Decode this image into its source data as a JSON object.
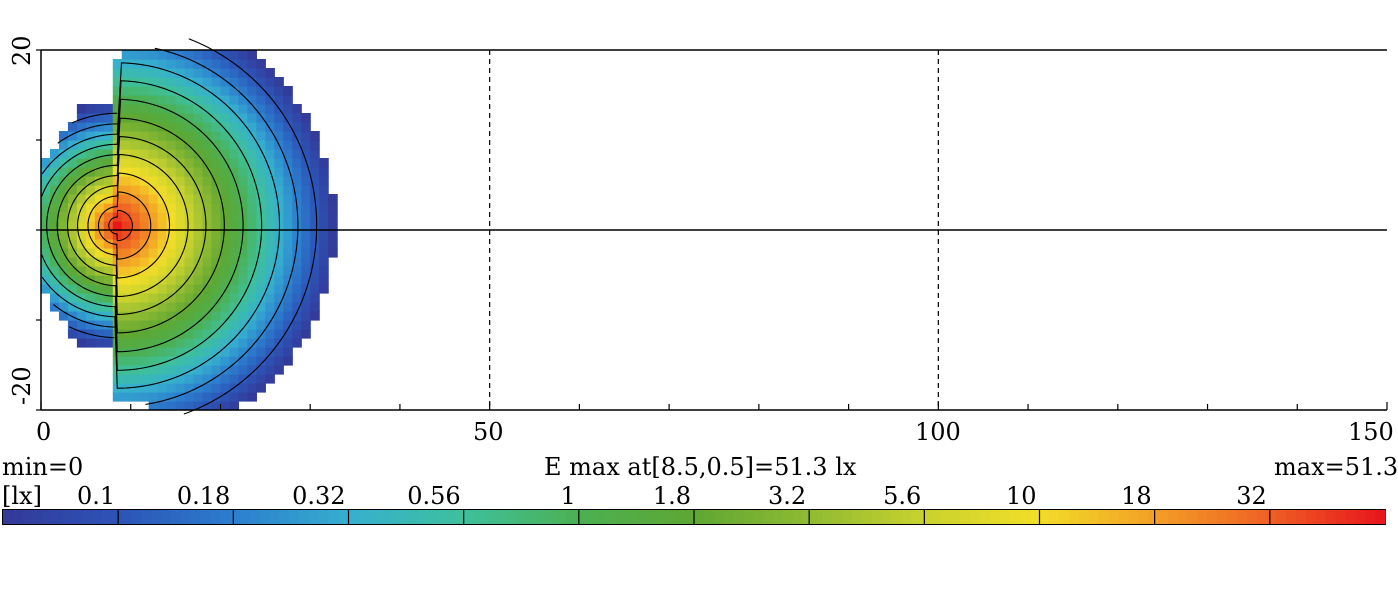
{
  "chart_data": {
    "type": "heatmap",
    "x_ticks": [
      "0",
      "50",
      "100",
      "150"
    ],
    "y_ticks": [
      "20",
      "-20"
    ],
    "xlim": [
      0,
      150
    ],
    "ylim": [
      -20,
      20
    ],
    "grid": "dashed vertical at 50 and 100",
    "max_point": {
      "x": 8.5,
      "y": 0.5,
      "value": 51.3
    },
    "min_label": "min=0",
    "center_label": "E max at[8.5,0.5]=51.3 lx",
    "max_label": "max=51.3",
    "unit_label": "[lx]",
    "colorbar_levels": [
      "0.1",
      "0.18",
      "0.32",
      "0.56",
      "1",
      "1.8",
      "3.2",
      "5.6",
      "10",
      "18",
      "32"
    ],
    "contour_levels": [
      0.1,
      0.18,
      0.32,
      0.56,
      1,
      1.8,
      3.2,
      5.6,
      10,
      18,
      32
    ],
    "colors": [
      "#333a99",
      "#2c55b8",
      "#2c7fce",
      "#36b0cf",
      "#3ec09c",
      "#4cb052",
      "#5ea733",
      "#8fba33",
      "#c8d22e",
      "#f2de28",
      "#f3a126",
      "#ef6224",
      "#e8171c"
    ]
  }
}
